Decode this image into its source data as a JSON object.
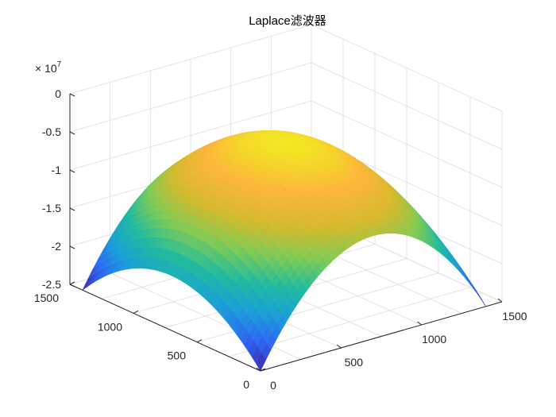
{
  "chart_data": {
    "type": "surface",
    "title": "Laplace滤波器",
    "xlabel": "",
    "ylabel": "",
    "zlabel": "",
    "z_exponent_label": "× 10",
    "z_exponent_power": "7",
    "x_ticks": [
      "0",
      "500",
      "1000",
      "1500"
    ],
    "y_ticks": [
      "0",
      "500",
      "1000",
      "1500"
    ],
    "z_ticks": [
      "0",
      "-0.5",
      "-1",
      "-1.5",
      "-2",
      "-2.5"
    ],
    "xlim": [
      0,
      1500
    ],
    "ylim": [
      0,
      1500
    ],
    "zlim": [
      -25000000,
      0
    ],
    "surface": {
      "center": [
        700,
        700
      ],
      "peak_z": -4300000,
      "corner_z": -25000000,
      "edge_mid_z": -17800000
    },
    "colormap": [
      "#3e26a8",
      "#2f66f3",
      "#1b9fd8",
      "#1fbba0",
      "#7fcb56",
      "#d7ba2c",
      "#fcb63b",
      "#f2e722"
    ],
    "grid": true
  }
}
